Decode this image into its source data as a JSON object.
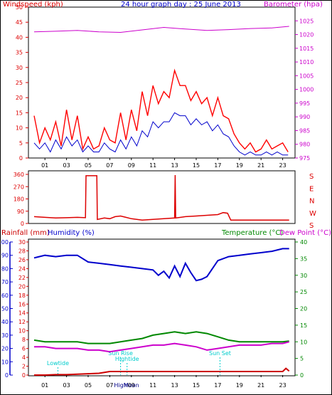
{
  "colors": {
    "wind": "#ff0000",
    "wind_avg": "#0000cc",
    "baro": "#cc00cc",
    "dir": "#dd0000",
    "rain": "#cc0000",
    "humidity": "#0000cc",
    "temp": "#008800",
    "dew": "#cc00cc",
    "astro": "#00cccc",
    "axis_red": "#dd0000",
    "axis_blue": "#0000cc",
    "axis_green": "#008800",
    "axis_magenta": "#cc00cc",
    "title": "#0000cc"
  },
  "chart_data": [
    {
      "id": "top",
      "type": "line",
      "title": "24 hour graph day : 25 June 2013",
      "left_label": "Windspeed (kph)",
      "right_label": "Barometer (hpa)",
      "x_ticks": [
        "01",
        "03",
        "05",
        "07",
        "09",
        "11",
        "13",
        "15",
        "17",
        "19",
        "21",
        "23"
      ],
      "left_axis": {
        "min": 0,
        "max": 50,
        "ticks": [
          "0",
          "5",
          "10",
          "15",
          "20",
          "25",
          "30",
          "35",
          "40",
          "45",
          "50"
        ]
      },
      "right_axis": {
        "min": 975,
        "max": 1030,
        "ticks": [
          "975",
          "980",
          "985",
          "990",
          "995",
          "1000",
          "1005",
          "1010",
          "1015",
          "1020",
          "1025"
        ]
      },
      "series": [
        {
          "key": "wind",
          "x": [
            0,
            0.5,
            1,
            1.5,
            2,
            2.5,
            3,
            3.5,
            4,
            4.5,
            5,
            5.5,
            6,
            6.5,
            7,
            7.5,
            8,
            8.5,
            9,
            9.5,
            10,
            10.5,
            11,
            11.5,
            12,
            12.5,
            13,
            13.5,
            14,
            14.5,
            15,
            15.5,
            16,
            16.5,
            17,
            17.5,
            18,
            18.5,
            19,
            19.5,
            20,
            20.5,
            21,
            21.5,
            22,
            22.5,
            23,
            23.5
          ],
          "y": [
            14,
            5,
            10,
            6,
            12,
            4,
            16,
            6,
            14,
            3,
            7,
            3,
            4,
            10,
            6,
            5,
            15,
            6,
            16,
            9,
            22,
            14,
            24,
            18,
            22,
            20,
            29,
            24,
            24,
            19,
            22,
            18,
            20,
            14,
            20,
            14,
            13,
            8,
            5,
            3,
            5,
            2,
            3,
            6,
            3,
            4,
            5,
            2
          ]
        },
        {
          "key": "wind_avg",
          "x": [
            0,
            0.5,
            1,
            1.5,
            2,
            2.5,
            3,
            3.5,
            4,
            4.5,
            5,
            5.5,
            6,
            6.5,
            7,
            7.5,
            8,
            8.5,
            9,
            9.5,
            10,
            10.5,
            11,
            11.5,
            12,
            12.5,
            13,
            13.5,
            14,
            14.5,
            15,
            15.5,
            16,
            16.5,
            17,
            17.5,
            18,
            18.5,
            19,
            19.5,
            20,
            20.5,
            21,
            21.5,
            22,
            22.5,
            23,
            23.5
          ],
          "y": [
            5,
            3,
            5,
            2,
            6,
            3,
            7,
            4,
            6,
            2,
            4,
            2,
            2,
            5,
            3,
            2,
            6,
            3,
            7,
            4,
            9,
            7,
            12,
            10,
            12,
            12,
            15,
            14,
            14,
            11,
            13,
            11,
            12,
            9,
            11,
            8,
            7,
            4,
            2,
            1,
            2,
            1,
            1,
            2,
            1,
            2,
            1,
            1
          ]
        },
        {
          "key": "baro",
          "x": [
            0,
            2,
            4,
            6,
            8,
            10,
            12,
            14,
            16,
            18,
            20,
            22,
            23.6
          ],
          "y": [
            1021,
            1021.2,
            1021.5,
            1021,
            1020.8,
            1021.7,
            1022.6,
            1022,
            1021.5,
            1021.8,
            1022.2,
            1022.4,
            1023
          ]
        }
      ]
    },
    {
      "id": "dir",
      "type": "line",
      "right_labels": [
        "S",
        "E",
        "N",
        "W",
        "S"
      ],
      "left_axis": {
        "min": 0,
        "max": 360,
        "ticks": [
          "0",
          "90",
          "180",
          "270",
          "360"
        ]
      },
      "series": [
        {
          "key": "dir",
          "x": [
            0,
            1,
            2,
            3,
            4,
            4.75,
            4.8,
            5.8,
            5.85,
            6.5,
            7,
            7.5,
            8,
            8.5,
            9,
            9.5,
            10,
            11,
            12,
            13,
            13.05,
            13.1,
            14,
            15,
            16,
            17,
            17.5,
            17.9,
            18.2,
            20,
            22,
            23.6
          ],
          "y": [
            50,
            45,
            40,
            42,
            45,
            42,
            350,
            350,
            30,
            40,
            35,
            50,
            55,
            45,
            35,
            30,
            25,
            30,
            35,
            40,
            355,
            40,
            50,
            55,
            60,
            65,
            80,
            75,
            25,
            25,
            25,
            25
          ]
        }
      ]
    },
    {
      "id": "bottom",
      "type": "line",
      "left_labels": {
        "rain": "Rainfall (mm)",
        "humidity": "Humidity (%)"
      },
      "right_labels": {
        "temp": "Temperature (°C)",
        "dew": "Dew Point (°C)"
      },
      "x_ticks": [
        "01",
        "03",
        "05",
        "07",
        "09",
        "11",
        "13",
        "15",
        "17",
        "19",
        "21",
        "23"
      ],
      "rain_axis": {
        "min": 0,
        "max": 30,
        "ticks": [
          "0",
          "2",
          "4",
          "6",
          "8",
          "10",
          "12",
          "14",
          "16",
          "18",
          "20",
          "22",
          "24",
          "26",
          "28",
          "30"
        ]
      },
      "humidity_axis": {
        "min": 0,
        "max": 100,
        "ticks": [
          "0",
          "10",
          "20",
          "30",
          "40",
          "50",
          "60",
          "70",
          "80",
          "90",
          "100"
        ]
      },
      "temp_axis": {
        "min": 0,
        "max": 40,
        "ticks": [
          "0",
          "5",
          "10",
          "15",
          "20",
          "25",
          "30",
          "35",
          "40"
        ]
      },
      "series": [
        {
          "key": "humidity",
          "x": [
            0,
            1,
            2,
            3,
            4,
            5,
            6,
            7,
            8,
            9,
            10,
            11,
            11.5,
            12,
            12.5,
            13,
            13.5,
            14,
            14.5,
            15,
            15.5,
            16,
            17,
            18,
            19,
            20,
            21,
            22,
            23,
            23.6
          ],
          "y": [
            88,
            90,
            89,
            90,
            90,
            85,
            84,
            83,
            82,
            81,
            80,
            79,
            75,
            78,
            73,
            82,
            74,
            84,
            77,
            71,
            72,
            74,
            86,
            89,
            90,
            91,
            92,
            93,
            95,
            95
          ]
        },
        {
          "key": "temp",
          "x": [
            0,
            1,
            2,
            3,
            4,
            5,
            6,
            7,
            8,
            9,
            10,
            11,
            12,
            13,
            14,
            15,
            16,
            17,
            18,
            19,
            20,
            21,
            22,
            23,
            23.6
          ],
          "y": [
            10.5,
            10,
            10,
            10,
            10,
            9.5,
            9.5,
            9.5,
            10,
            10.5,
            11,
            12,
            12.5,
            13,
            12.5,
            13,
            12.5,
            11.5,
            10.5,
            10,
            10,
            10,
            10,
            10,
            10.2
          ]
        },
        {
          "key": "dew",
          "x": [
            0,
            1,
            2,
            3,
            4,
            5,
            6,
            7,
            8,
            9,
            10,
            11,
            12,
            13,
            14,
            15,
            16,
            17,
            18,
            19,
            20,
            21,
            22,
            23,
            23.6
          ],
          "y": [
            8.5,
            8.5,
            8,
            8,
            8,
            7.5,
            7.5,
            7,
            7.5,
            8,
            8.5,
            9,
            9,
            9.5,
            9,
            8.5,
            7.5,
            8,
            8.5,
            9,
            9,
            9,
            9.5,
            9.5,
            10
          ]
        },
        {
          "key": "rain",
          "x": [
            0,
            1,
            2,
            3,
            4,
            5,
            6,
            6.5,
            7,
            8,
            9,
            10,
            11,
            12,
            13,
            14,
            15,
            16,
            17,
            18,
            19,
            20,
            21,
            22,
            23,
            23.3,
            23.6
          ],
          "y": [
            0,
            0,
            0.1,
            0.1,
            0.2,
            0.3,
            0.4,
            0.6,
            0.8,
            0.8,
            0.8,
            0.8,
            0.8,
            0.8,
            0.8,
            0.8,
            0.8,
            0.8,
            0.8,
            0.8,
            0.8,
            0.8,
            0.8,
            0.8,
            0.8,
            1.5,
            0.9
          ]
        }
      ],
      "annotations": [
        {
          "text": "Lowtide",
          "hour": 2.2,
          "level": "low"
        },
        {
          "text": "Sun Rise",
          "hour": 8,
          "level": "mid"
        },
        {
          "text": "Hightide",
          "hour": 8.6,
          "level": "high"
        },
        {
          "text": "Sun Set",
          "hour": 17.2,
          "level": "mid"
        },
        {
          "text": "High",
          "hour": 8,
          "level": "axis"
        },
        {
          "text": "Moon",
          "hour": 9,
          "level": "axis"
        }
      ]
    }
  ]
}
